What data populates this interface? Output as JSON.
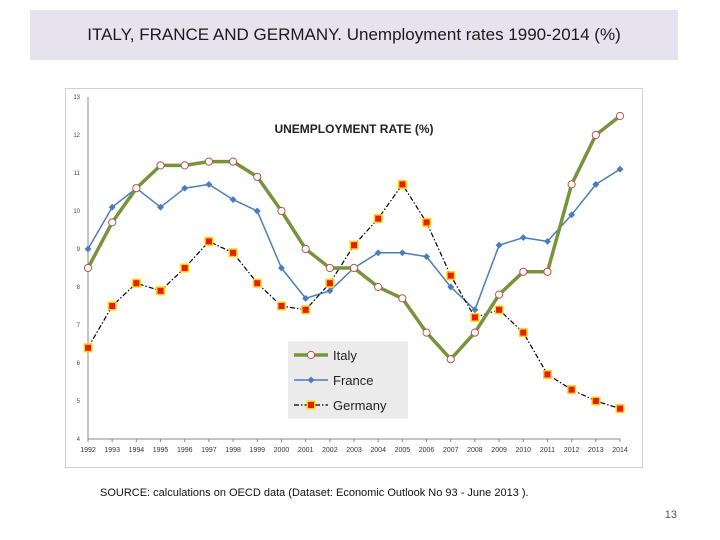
{
  "slide": {
    "title": "ITALY, FRANCE AND GERMANY. Unemployment rates  1990-2014 (%)",
    "source": "SOURCE: calculations on OECD data  (Dataset: Economic Outlook No 93 - June 2013 ).",
    "page_number": "13"
  },
  "chart_data": {
    "type": "line",
    "title": "UNEMPLOYMENT RATE (%)",
    "x": [
      "1992",
      "1993",
      "1994",
      "1995",
      "1996",
      "1997",
      "1998",
      "1999",
      "2000",
      "2001",
      "2002",
      "2003",
      "2004",
      "2005",
      "2006",
      "2007",
      "2008",
      "2009",
      "2010",
      "2011",
      "2012",
      "2013",
      "2014"
    ],
    "ylim": [
      4,
      13
    ],
    "yticks": [
      "4",
      "5",
      "6",
      "7",
      "8",
      "9",
      "10",
      "11",
      "12",
      "13"
    ],
    "grid": false,
    "legend_position": "bottom-center",
    "series": [
      {
        "name": "Italy",
        "color": "#77933c",
        "marker": "circle",
        "values": [
          8.5,
          9.7,
          10.6,
          11.2,
          11.2,
          11.3,
          11.3,
          10.9,
          10.0,
          9.0,
          8.5,
          8.5,
          8.0,
          7.7,
          6.8,
          6.1,
          6.8,
          7.8,
          8.4,
          8.4,
          10.7,
          12.0,
          12.5
        ]
      },
      {
        "name": "France",
        "color": "#4a7ebb",
        "marker": "diamond",
        "values": [
          9.0,
          10.1,
          10.6,
          10.1,
          10.6,
          10.7,
          10.3,
          10.0,
          8.5,
          7.7,
          7.9,
          8.5,
          8.9,
          8.9,
          8.8,
          8.0,
          7.4,
          9.1,
          9.3,
          9.2,
          9.9,
          10.7,
          11.1
        ]
      },
      {
        "name": "Germany",
        "color": "#e41a1c",
        "marker": "square",
        "values": [
          6.4,
          7.5,
          8.1,
          7.9,
          8.5,
          9.2,
          8.9,
          8.1,
          7.5,
          7.4,
          8.1,
          9.1,
          9.8,
          10.7,
          9.7,
          8.3,
          7.2,
          7.4,
          6.8,
          5.7,
          5.3,
          5.0,
          4.8
        ]
      }
    ]
  }
}
